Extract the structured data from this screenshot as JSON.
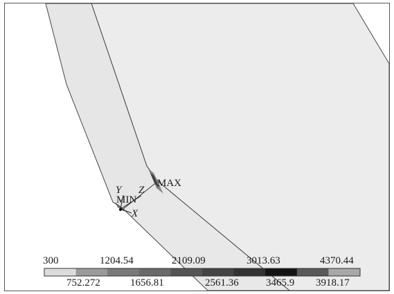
{
  "markers": {
    "max": "MAX",
    "min": "MIN"
  },
  "triad": {
    "x": "X",
    "y": "Y",
    "z": "Z"
  },
  "legend": {
    "top_ticks": [
      "300",
      "1204.54",
      "2109.09",
      "3013.63",
      "4370.44"
    ],
    "bottom_ticks": [
      "752.272",
      "1656.81",
      "2561.36",
      "3465.9",
      "3918.17"
    ],
    "colors": [
      "#dcdcdc",
      "#9a9a9a",
      "#7a7a7a",
      "#6a6a6a",
      "#555555",
      "#444444",
      "#333333",
      "#141414",
      "#5a5a5a",
      "#a8a8a8"
    ]
  },
  "colors": {
    "plate": "#ececec",
    "edge": "#444444",
    "background": "#ffffff"
  }
}
